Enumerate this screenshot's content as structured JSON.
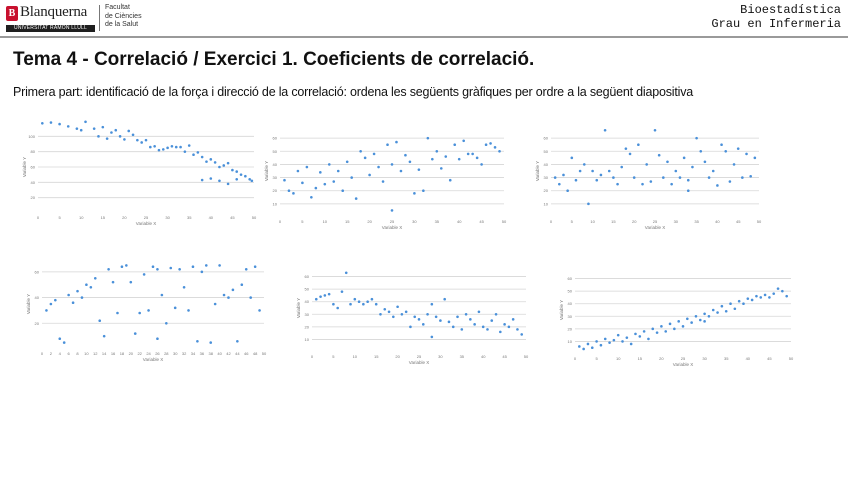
{
  "header": {
    "logo_name": "Blanquerna",
    "logo_sub": "UNIVERSITAT RAMON LLULL",
    "faculty_lines": [
      "Facultat",
      "de Ciències",
      "de la Salut"
    ],
    "course_lines": [
      "Bioestadística",
      "Grau en Infermeria"
    ]
  },
  "title": "Tema 4 - Correlació / Exercici 1. Coeficients de correlació.",
  "subtitle": "Primera part: identificació de la força i direcció de la correlació: ordena les següents gràfiques per ordre a la següent diapositiva",
  "colors": {
    "points": "#4a90d9",
    "grid": "#d6d6d6",
    "axis_text": "#777777"
  },
  "chart_data": [
    {
      "type": "scatter",
      "xlabel": "Variable X",
      "ylabel": "Variable Y",
      "xlim": [
        0,
        50
      ],
      "ylim": [
        0,
        120
      ],
      "yticks": [
        20,
        40,
        60,
        80,
        100
      ],
      "xticks": [
        0,
        5,
        10,
        15,
        20,
        25,
        30,
        35,
        40,
        45,
        50
      ],
      "points": [
        [
          1,
          117
        ],
        [
          3,
          118
        ],
        [
          5,
          116
        ],
        [
          7,
          113
        ],
        [
          9,
          110
        ],
        [
          10,
          108
        ],
        [
          11,
          119
        ],
        [
          13,
          110
        ],
        [
          14,
          100
        ],
        [
          15,
          112
        ],
        [
          16,
          97
        ],
        [
          17,
          105
        ],
        [
          18,
          108
        ],
        [
          19,
          100
        ],
        [
          20,
          96
        ],
        [
          21,
          107
        ],
        [
          22,
          102
        ],
        [
          23,
          95
        ],
        [
          24,
          92
        ],
        [
          25,
          95
        ],
        [
          26,
          86
        ],
        [
          27,
          87
        ],
        [
          28,
          82
        ],
        [
          29,
          83
        ],
        [
          30,
          85
        ],
        [
          31,
          87
        ],
        [
          32,
          86
        ],
        [
          33,
          86
        ],
        [
          34,
          80
        ],
        [
          35,
          88
        ],
        [
          36,
          76
        ],
        [
          37,
          79
        ],
        [
          38,
          73
        ],
        [
          39,
          67
        ],
        [
          40,
          70
        ],
        [
          41,
          66
        ],
        [
          42,
          60
        ],
        [
          43,
          62
        ],
        [
          44,
          65
        ],
        [
          45,
          56
        ],
        [
          46,
          54
        ],
        [
          47,
          50
        ],
        [
          48,
          48
        ],
        [
          49,
          44
        ],
        [
          49.5,
          42
        ],
        [
          46,
          44
        ],
        [
          44,
          38
        ],
        [
          42,
          42
        ],
        [
          40,
          45
        ],
        [
          38,
          43
        ]
      ]
    },
    {
      "type": "scatter",
      "xlabel": "Variable X",
      "ylabel": "Variable Y",
      "xlim": [
        0,
        50
      ],
      "ylim": [
        0,
        70
      ],
      "yticks": [
        10,
        20,
        30,
        40,
        50,
        60
      ],
      "xticks": [
        0,
        5,
        10,
        15,
        20,
        25,
        30,
        35,
        40,
        45,
        50
      ],
      "points": [
        [
          1,
          28
        ],
        [
          2,
          20
        ],
        [
          3,
          18
        ],
        [
          4,
          35
        ],
        [
          5,
          26
        ],
        [
          6,
          38
        ],
        [
          7,
          15
        ],
        [
          8,
          22
        ],
        [
          9,
          34
        ],
        [
          10,
          25
        ],
        [
          11,
          40
        ],
        [
          12,
          27
        ],
        [
          13,
          35
        ],
        [
          14,
          20
        ],
        [
          15,
          42
        ],
        [
          16,
          30
        ],
        [
          17,
          14
        ],
        [
          18,
          50
        ],
        [
          19,
          45
        ],
        [
          20,
          32
        ],
        [
          21,
          48
        ],
        [
          22,
          38
        ],
        [
          23,
          27
        ],
        [
          24,
          55
        ],
        [
          25,
          40
        ],
        [
          26,
          57
        ],
        [
          27,
          35
        ],
        [
          28,
          47
        ],
        [
          29,
          42
        ],
        [
          30,
          18
        ],
        [
          31,
          36
        ],
        [
          32,
          20
        ],
        [
          33,
          60
        ],
        [
          34,
          44
        ],
        [
          35,
          50
        ],
        [
          36,
          37
        ],
        [
          37,
          46
        ],
        [
          38,
          28
        ],
        [
          39,
          55
        ],
        [
          40,
          44
        ],
        [
          41,
          58
        ],
        [
          42,
          48
        ],
        [
          43,
          48
        ],
        [
          44,
          45
        ],
        [
          45,
          40
        ],
        [
          46,
          55
        ],
        [
          47,
          56
        ],
        [
          48,
          53
        ],
        [
          49,
          50
        ],
        [
          25,
          5
        ]
      ]
    },
    {
      "type": "scatter",
      "xlabel": "Variable X",
      "ylabel": "Variable Y",
      "xlim": [
        0,
        50
      ],
      "ylim": [
        0,
        70
      ],
      "yticks": [
        10,
        20,
        30,
        40,
        50,
        60
      ],
      "xticks": [
        0,
        5,
        10,
        15,
        20,
        25,
        30,
        35,
        40,
        45,
        50
      ],
      "points": [
        [
          1,
          30
        ],
        [
          2,
          25
        ],
        [
          3,
          32
        ],
        [
          4,
          20
        ],
        [
          5,
          45
        ],
        [
          6,
          28
        ],
        [
          7,
          35
        ],
        [
          8,
          40
        ],
        [
          9,
          10
        ],
        [
          10,
          35
        ],
        [
          11,
          28
        ],
        [
          12,
          32
        ],
        [
          13,
          66
        ],
        [
          14,
          35
        ],
        [
          15,
          30
        ],
        [
          16,
          25
        ],
        [
          17,
          38
        ],
        [
          18,
          52
        ],
        [
          19,
          48
        ],
        [
          20,
          30
        ],
        [
          21,
          55
        ],
        [
          22,
          25
        ],
        [
          23,
          40
        ],
        [
          24,
          27
        ],
        [
          25,
          66
        ],
        [
          26,
          47
        ],
        [
          27,
          30
        ],
        [
          28,
          42
        ],
        [
          29,
          25
        ],
        [
          30,
          35
        ],
        [
          31,
          30
        ],
        [
          32,
          45
        ],
        [
          33,
          20
        ],
        [
          34,
          38
        ],
        [
          35,
          60
        ],
        [
          36,
          50
        ],
        [
          37,
          42
        ],
        [
          38,
          30
        ],
        [
          39,
          35
        ],
        [
          40,
          24
        ],
        [
          41,
          55
        ],
        [
          42,
          50
        ],
        [
          43,
          27
        ],
        [
          44,
          40
        ],
        [
          45,
          52
        ],
        [
          46,
          30
        ],
        [
          47,
          48
        ],
        [
          48,
          31
        ],
        [
          49,
          45
        ],
        [
          33,
          28
        ]
      ]
    },
    {
      "type": "scatter",
      "xlabel": "Variable X",
      "ylabel": "Variable Y",
      "xlim": [
        0,
        50
      ],
      "ylim": [
        0,
        70
      ],
      "yticks": [
        20,
        40,
        60
      ],
      "xticks": [
        0,
        2,
        4,
        6,
        8,
        10,
        12,
        14,
        16,
        18,
        20,
        22,
        24,
        26,
        28,
        30,
        32,
        34,
        36,
        38,
        40,
        42,
        44,
        46,
        48,
        50
      ],
      "points": [
        [
          1,
          30
        ],
        [
          2,
          35
        ],
        [
          3,
          38
        ],
        [
          4,
          8
        ],
        [
          5,
          5
        ],
        [
          6,
          42
        ],
        [
          7,
          36
        ],
        [
          8,
          45
        ],
        [
          9,
          40
        ],
        [
          10,
          50
        ],
        [
          11,
          48
        ],
        [
          12,
          55
        ],
        [
          13,
          22
        ],
        [
          14,
          10
        ],
        [
          15,
          62
        ],
        [
          16,
          52
        ],
        [
          17,
          28
        ],
        [
          18,
          64
        ],
        [
          19,
          65
        ],
        [
          20,
          52
        ],
        [
          21,
          12
        ],
        [
          22,
          28
        ],
        [
          23,
          58
        ],
        [
          24,
          30
        ],
        [
          25,
          64
        ],
        [
          26,
          62
        ],
        [
          27,
          42
        ],
        [
          28,
          20
        ],
        [
          29,
          63
        ],
        [
          30,
          32
        ],
        [
          31,
          62
        ],
        [
          32,
          48
        ],
        [
          33,
          30
        ],
        [
          34,
          64
        ],
        [
          35,
          6
        ],
        [
          36,
          60
        ],
        [
          37,
          65
        ],
        [
          38,
          5
        ],
        [
          39,
          35
        ],
        [
          40,
          65
        ],
        [
          41,
          42
        ],
        [
          42,
          40
        ],
        [
          43,
          46
        ],
        [
          44,
          6
        ],
        [
          45,
          50
        ],
        [
          46,
          62
        ],
        [
          47,
          40
        ],
        [
          48,
          64
        ],
        [
          49,
          30
        ],
        [
          26,
          8
        ]
      ]
    },
    {
      "type": "scatter",
      "xlabel": "Variable X",
      "ylabel": "Variable Y",
      "xlim": [
        0,
        50
      ],
      "ylim": [
        0,
        70
      ],
      "yticks": [
        10,
        20,
        30,
        40,
        50,
        60
      ],
      "xticks": [
        0,
        5,
        10,
        15,
        20,
        25,
        30,
        35,
        40,
        45,
        50
      ],
      "points": [
        [
          1,
          42
        ],
        [
          2,
          44
        ],
        [
          3,
          45
        ],
        [
          4,
          46
        ],
        [
          5,
          38
        ],
        [
          6,
          35
        ],
        [
          7,
          48
        ],
        [
          8,
          63
        ],
        [
          9,
          38
        ],
        [
          10,
          42
        ],
        [
          11,
          40
        ],
        [
          12,
          38
        ],
        [
          13,
          40
        ],
        [
          14,
          42
        ],
        [
          15,
          38
        ],
        [
          16,
          30
        ],
        [
          17,
          34
        ],
        [
          18,
          32
        ],
        [
          19,
          28
        ],
        [
          20,
          36
        ],
        [
          21,
          30
        ],
        [
          22,
          32
        ],
        [
          23,
          20
        ],
        [
          24,
          28
        ],
        [
          25,
          26
        ],
        [
          26,
          22
        ],
        [
          27,
          30
        ],
        [
          28,
          38
        ],
        [
          29,
          28
        ],
        [
          30,
          25
        ],
        [
          31,
          42
        ],
        [
          32,
          24
        ],
        [
          33,
          20
        ],
        [
          34,
          28
        ],
        [
          35,
          18
        ],
        [
          36,
          30
        ],
        [
          37,
          26
        ],
        [
          38,
          22
        ],
        [
          39,
          32
        ],
        [
          40,
          20
        ],
        [
          41,
          18
        ],
        [
          42,
          25
        ],
        [
          43,
          30
        ],
        [
          44,
          16
        ],
        [
          45,
          22
        ],
        [
          46,
          20
        ],
        [
          47,
          26
        ],
        [
          48,
          18
        ],
        [
          49,
          14
        ],
        [
          28,
          12
        ]
      ]
    },
    {
      "type": "scatter",
      "xlabel": "Variable X",
      "ylabel": "Variable Y",
      "xlim": [
        0,
        50
      ],
      "ylim": [
        0,
        70
      ],
      "yticks": [
        10,
        20,
        30,
        40,
        50,
        60
      ],
      "xticks": [
        0,
        5,
        10,
        15,
        20,
        25,
        30,
        35,
        40,
        45,
        50
      ],
      "points": [
        [
          1,
          6
        ],
        [
          2,
          4
        ],
        [
          3,
          8
        ],
        [
          4,
          5
        ],
        [
          5,
          10
        ],
        [
          6,
          7
        ],
        [
          7,
          12
        ],
        [
          8,
          9
        ],
        [
          9,
          11
        ],
        [
          10,
          15
        ],
        [
          11,
          10
        ],
        [
          12,
          13
        ],
        [
          13,
          8
        ],
        [
          14,
          16
        ],
        [
          15,
          14
        ],
        [
          16,
          18
        ],
        [
          17,
          12
        ],
        [
          18,
          20
        ],
        [
          19,
          17
        ],
        [
          20,
          22
        ],
        [
          21,
          18
        ],
        [
          22,
          24
        ],
        [
          23,
          20
        ],
        [
          24,
          26
        ],
        [
          25,
          22
        ],
        [
          26,
          28
        ],
        [
          27,
          25
        ],
        [
          28,
          30
        ],
        [
          29,
          27
        ],
        [
          30,
          32
        ],
        [
          31,
          30
        ],
        [
          32,
          35
        ],
        [
          33,
          33
        ],
        [
          34,
          38
        ],
        [
          35,
          34
        ],
        [
          36,
          40
        ],
        [
          37,
          36
        ],
        [
          38,
          42
        ],
        [
          39,
          40
        ],
        [
          40,
          44
        ],
        [
          41,
          43
        ],
        [
          42,
          46
        ],
        [
          43,
          45
        ],
        [
          44,
          47
        ],
        [
          45,
          45
        ],
        [
          46,
          48
        ],
        [
          47,
          52
        ],
        [
          48,
          50
        ],
        [
          49,
          46
        ],
        [
          30,
          26
        ]
      ]
    }
  ]
}
